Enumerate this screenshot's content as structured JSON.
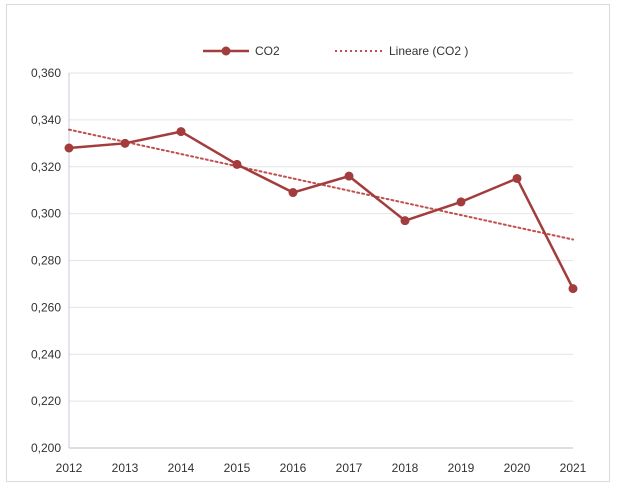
{
  "chart_data": {
    "type": "line",
    "title": "",
    "xlabel": "",
    "ylabel": "",
    "x": [
      "2012",
      "2013",
      "2014",
      "2015",
      "2016",
      "2017",
      "2018",
      "2019",
      "2020",
      "2021"
    ],
    "series": [
      {
        "name": "CO2",
        "values": [
          0.328,
          0.33,
          0.335,
          0.321,
          0.309,
          0.316,
          0.297,
          0.305,
          0.315,
          0.268
        ],
        "color": "#a33c3c"
      }
    ],
    "trendline": {
      "name": "Lineare (CO2 )",
      "type": "linear",
      "color": "#c0504d",
      "style": "dotted"
    },
    "ylim": [
      0.2,
      0.36
    ],
    "yticks": [
      0.2,
      0.22,
      0.24,
      0.26,
      0.28,
      0.3,
      0.32,
      0.34,
      0.36
    ],
    "ytick_labels": [
      "0,200",
      "0,220",
      "0,240",
      "0,260",
      "0,280",
      "0,300",
      "0,320",
      "0,340",
      "0,360"
    ],
    "grid": true,
    "legend_position": "top"
  }
}
